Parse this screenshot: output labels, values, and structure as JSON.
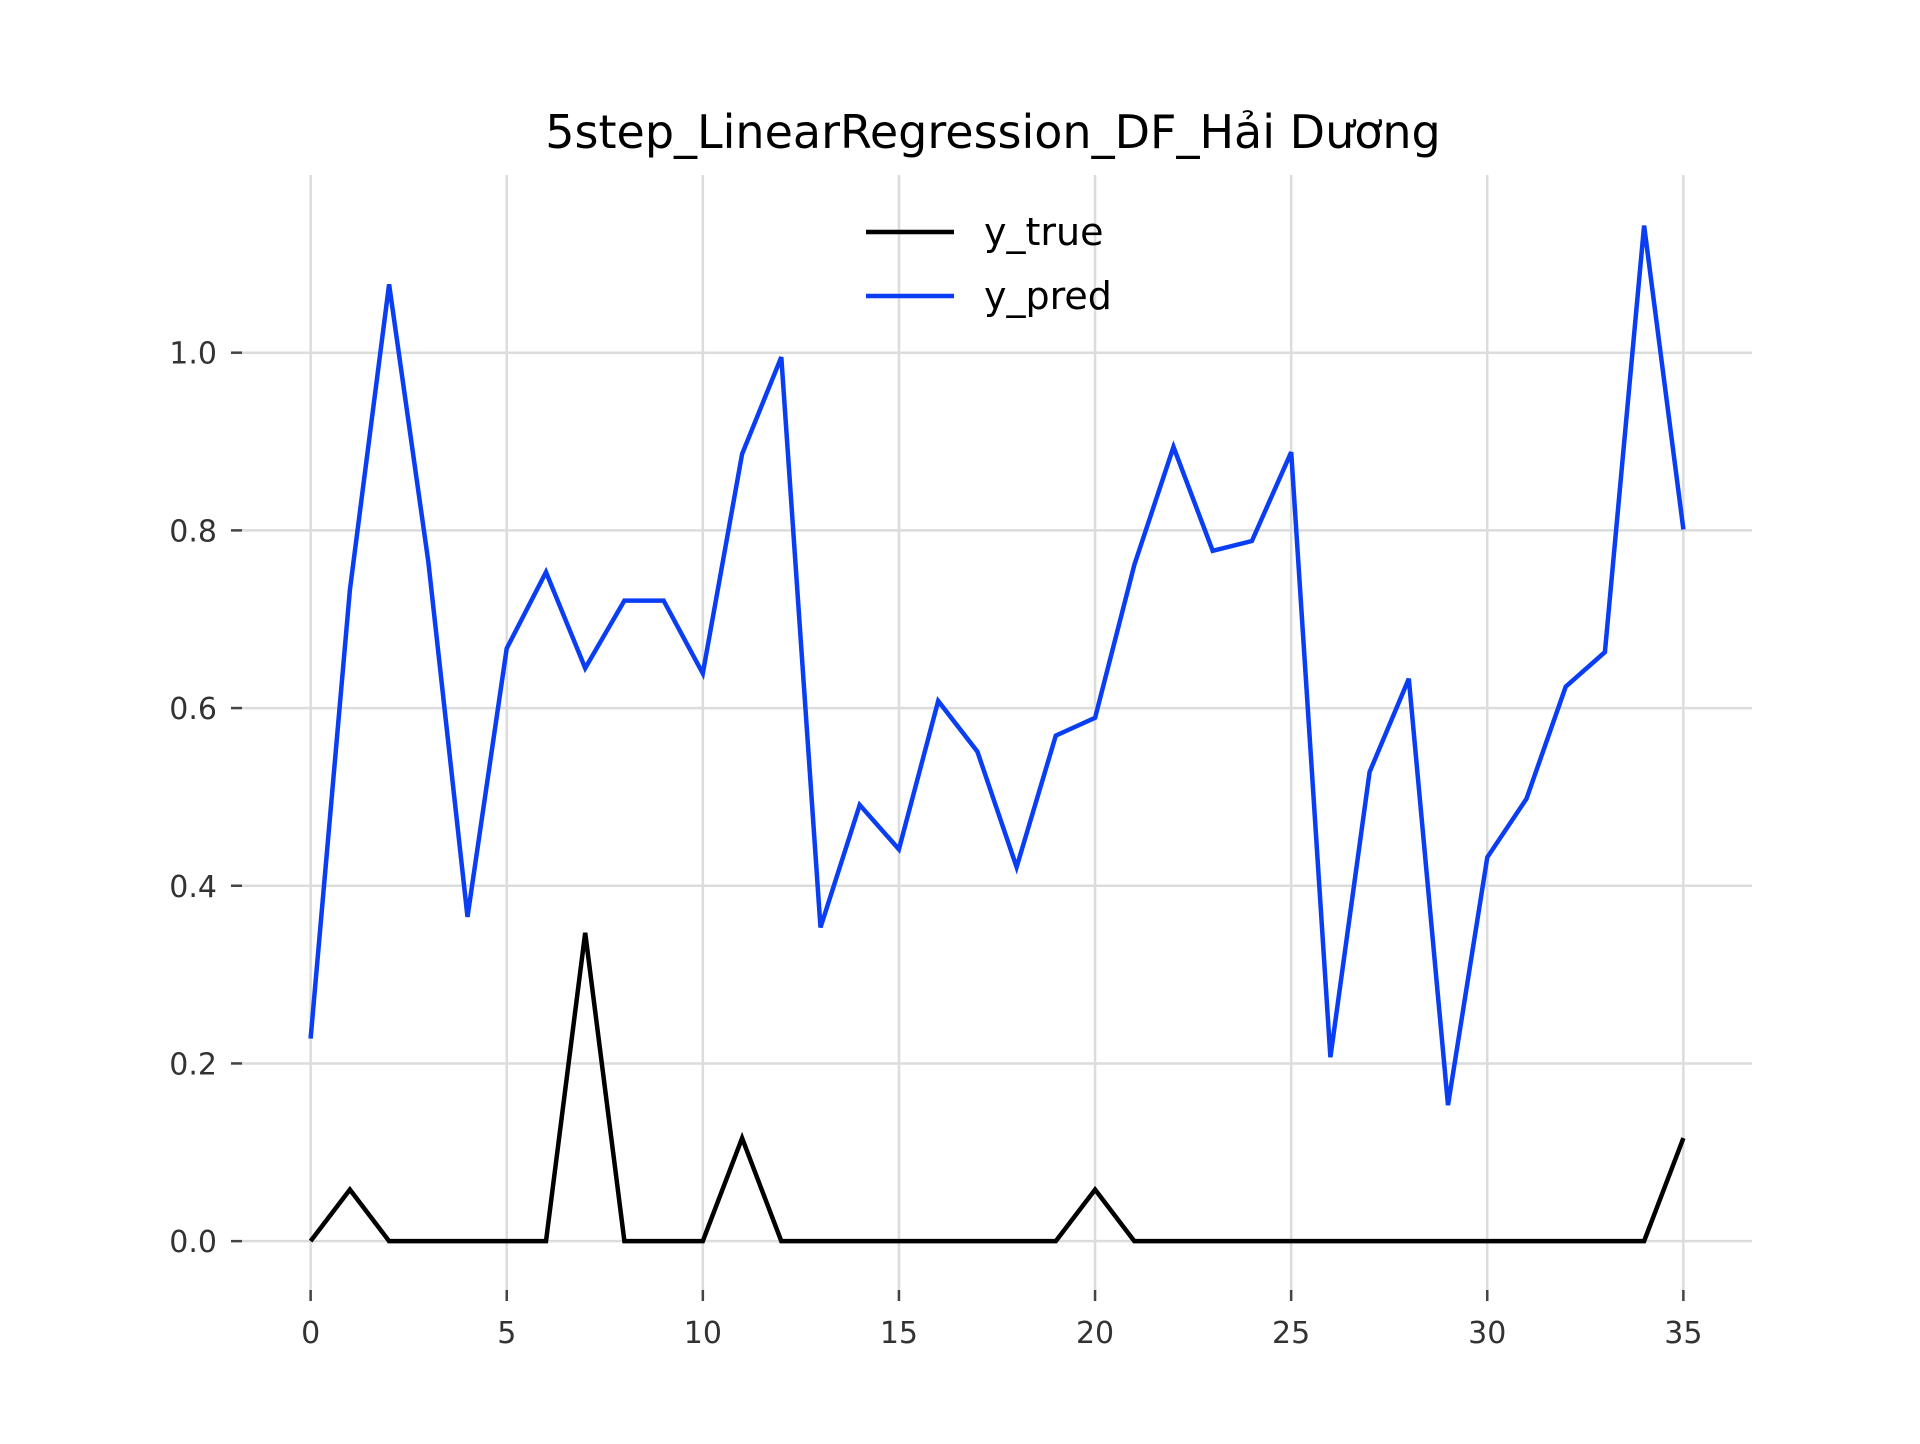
{
  "chart_data": {
    "type": "line",
    "title": "5step_LinearRegression_DF_Hải Dương",
    "xlabel": "",
    "ylabel": "",
    "xlim": [
      -1.75,
      36.75
    ],
    "ylim": [
      -0.055,
      1.2
    ],
    "xticks": [
      0,
      5,
      10,
      15,
      20,
      25,
      30,
      35
    ],
    "xtick_labels": [
      "0",
      "5",
      "10",
      "15",
      "20",
      "25",
      "30",
      "35"
    ],
    "yticks": [
      0.0,
      0.2,
      0.4,
      0.6,
      0.8,
      1.0
    ],
    "ytick_labels": [
      "0.0",
      "0.2",
      "0.4",
      "0.6",
      "0.8",
      "1.0"
    ],
    "grid": true,
    "legend_position": "top-center",
    "x": [
      0,
      1,
      2,
      3,
      4,
      5,
      6,
      7,
      8,
      9,
      10,
      11,
      12,
      13,
      14,
      15,
      16,
      17,
      18,
      19,
      20,
      21,
      22,
      23,
      24,
      25,
      26,
      27,
      28,
      29,
      30,
      31,
      32,
      33,
      34,
      35
    ],
    "series": [
      {
        "name": "y_true",
        "color": "#000000",
        "values": [
          0.0,
          0.058,
          0.0,
          0.0,
          0.0,
          0.0,
          0.0,
          0.347,
          0.0,
          0.0,
          0.0,
          0.116,
          0.0,
          0.0,
          0.0,
          0.0,
          0.0,
          0.0,
          0.0,
          0.0,
          0.058,
          0.0,
          0.0,
          0.0,
          0.0,
          0.0,
          0.0,
          0.0,
          0.0,
          0.0,
          0.0,
          0.0,
          0.0,
          0.0,
          0.0,
          0.116
        ]
      },
      {
        "name": "y_pred",
        "color": "#0a3ef5",
        "values": [
          0.228,
          0.733,
          1.077,
          0.765,
          0.365,
          0.667,
          0.753,
          0.645,
          0.721,
          0.721,
          0.639,
          0.886,
          0.995,
          0.353,
          0.491,
          0.441,
          0.608,
          0.551,
          0.421,
          0.569,
          0.589,
          0.761,
          0.894,
          0.777,
          0.788,
          0.888,
          0.207,
          0.528,
          0.633,
          0.153,
          0.432,
          0.498,
          0.624,
          0.663,
          1.143,
          0.801
        ]
      }
    ]
  }
}
